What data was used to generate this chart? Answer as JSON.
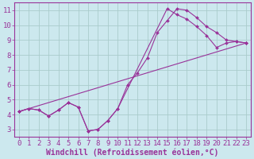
{
  "bg_color": "#cce8ee",
  "grid_color": "#aacccc",
  "line_color": "#993399",
  "xlabel": "Windchill (Refroidissement éolien,°C)",
  "ylabel_ticks": [
    3,
    4,
    5,
    6,
    7,
    8,
    9,
    10,
    11
  ],
  "xlabel_ticks": [
    0,
    1,
    2,
    3,
    4,
    5,
    6,
    7,
    8,
    9,
    10,
    11,
    12,
    13,
    14,
    15,
    16,
    17,
    18,
    19,
    20,
    21,
    22,
    23
  ],
  "xlim": [
    -0.5,
    23.5
  ],
  "ylim": [
    2.5,
    11.5
  ],
  "line1_x": [
    0,
    1,
    2,
    3,
    4,
    5,
    6,
    7,
    8,
    9,
    10,
    11,
    12,
    13,
    14,
    15,
    16,
    17,
    18,
    19,
    20,
    21,
    22,
    23
  ],
  "line1_y": [
    4.2,
    4.4,
    4.3,
    3.9,
    4.3,
    4.8,
    4.5,
    2.9,
    3.0,
    3.6,
    4.4,
    6.0,
    6.8,
    7.8,
    9.5,
    10.3,
    11.1,
    11.0,
    10.5,
    9.9,
    9.5,
    9.0,
    8.9,
    8.8
  ],
  "line2_x": [
    0,
    23
  ],
  "line2_y": [
    4.2,
    8.8
  ],
  "line3_x": [
    0,
    1,
    2,
    3,
    4,
    5,
    6,
    7,
    8,
    9,
    10,
    15,
    16,
    17,
    18,
    19,
    20,
    21,
    22,
    23
  ],
  "line3_y": [
    4.2,
    4.4,
    4.3,
    3.9,
    4.3,
    4.8,
    4.5,
    2.9,
    3.0,
    3.6,
    4.4,
    11.1,
    10.7,
    10.4,
    9.9,
    9.3,
    8.5,
    8.8,
    8.9,
    8.8
  ],
  "font_color": "#993399",
  "tick_fontsize": 6.5,
  "label_fontsize": 7
}
